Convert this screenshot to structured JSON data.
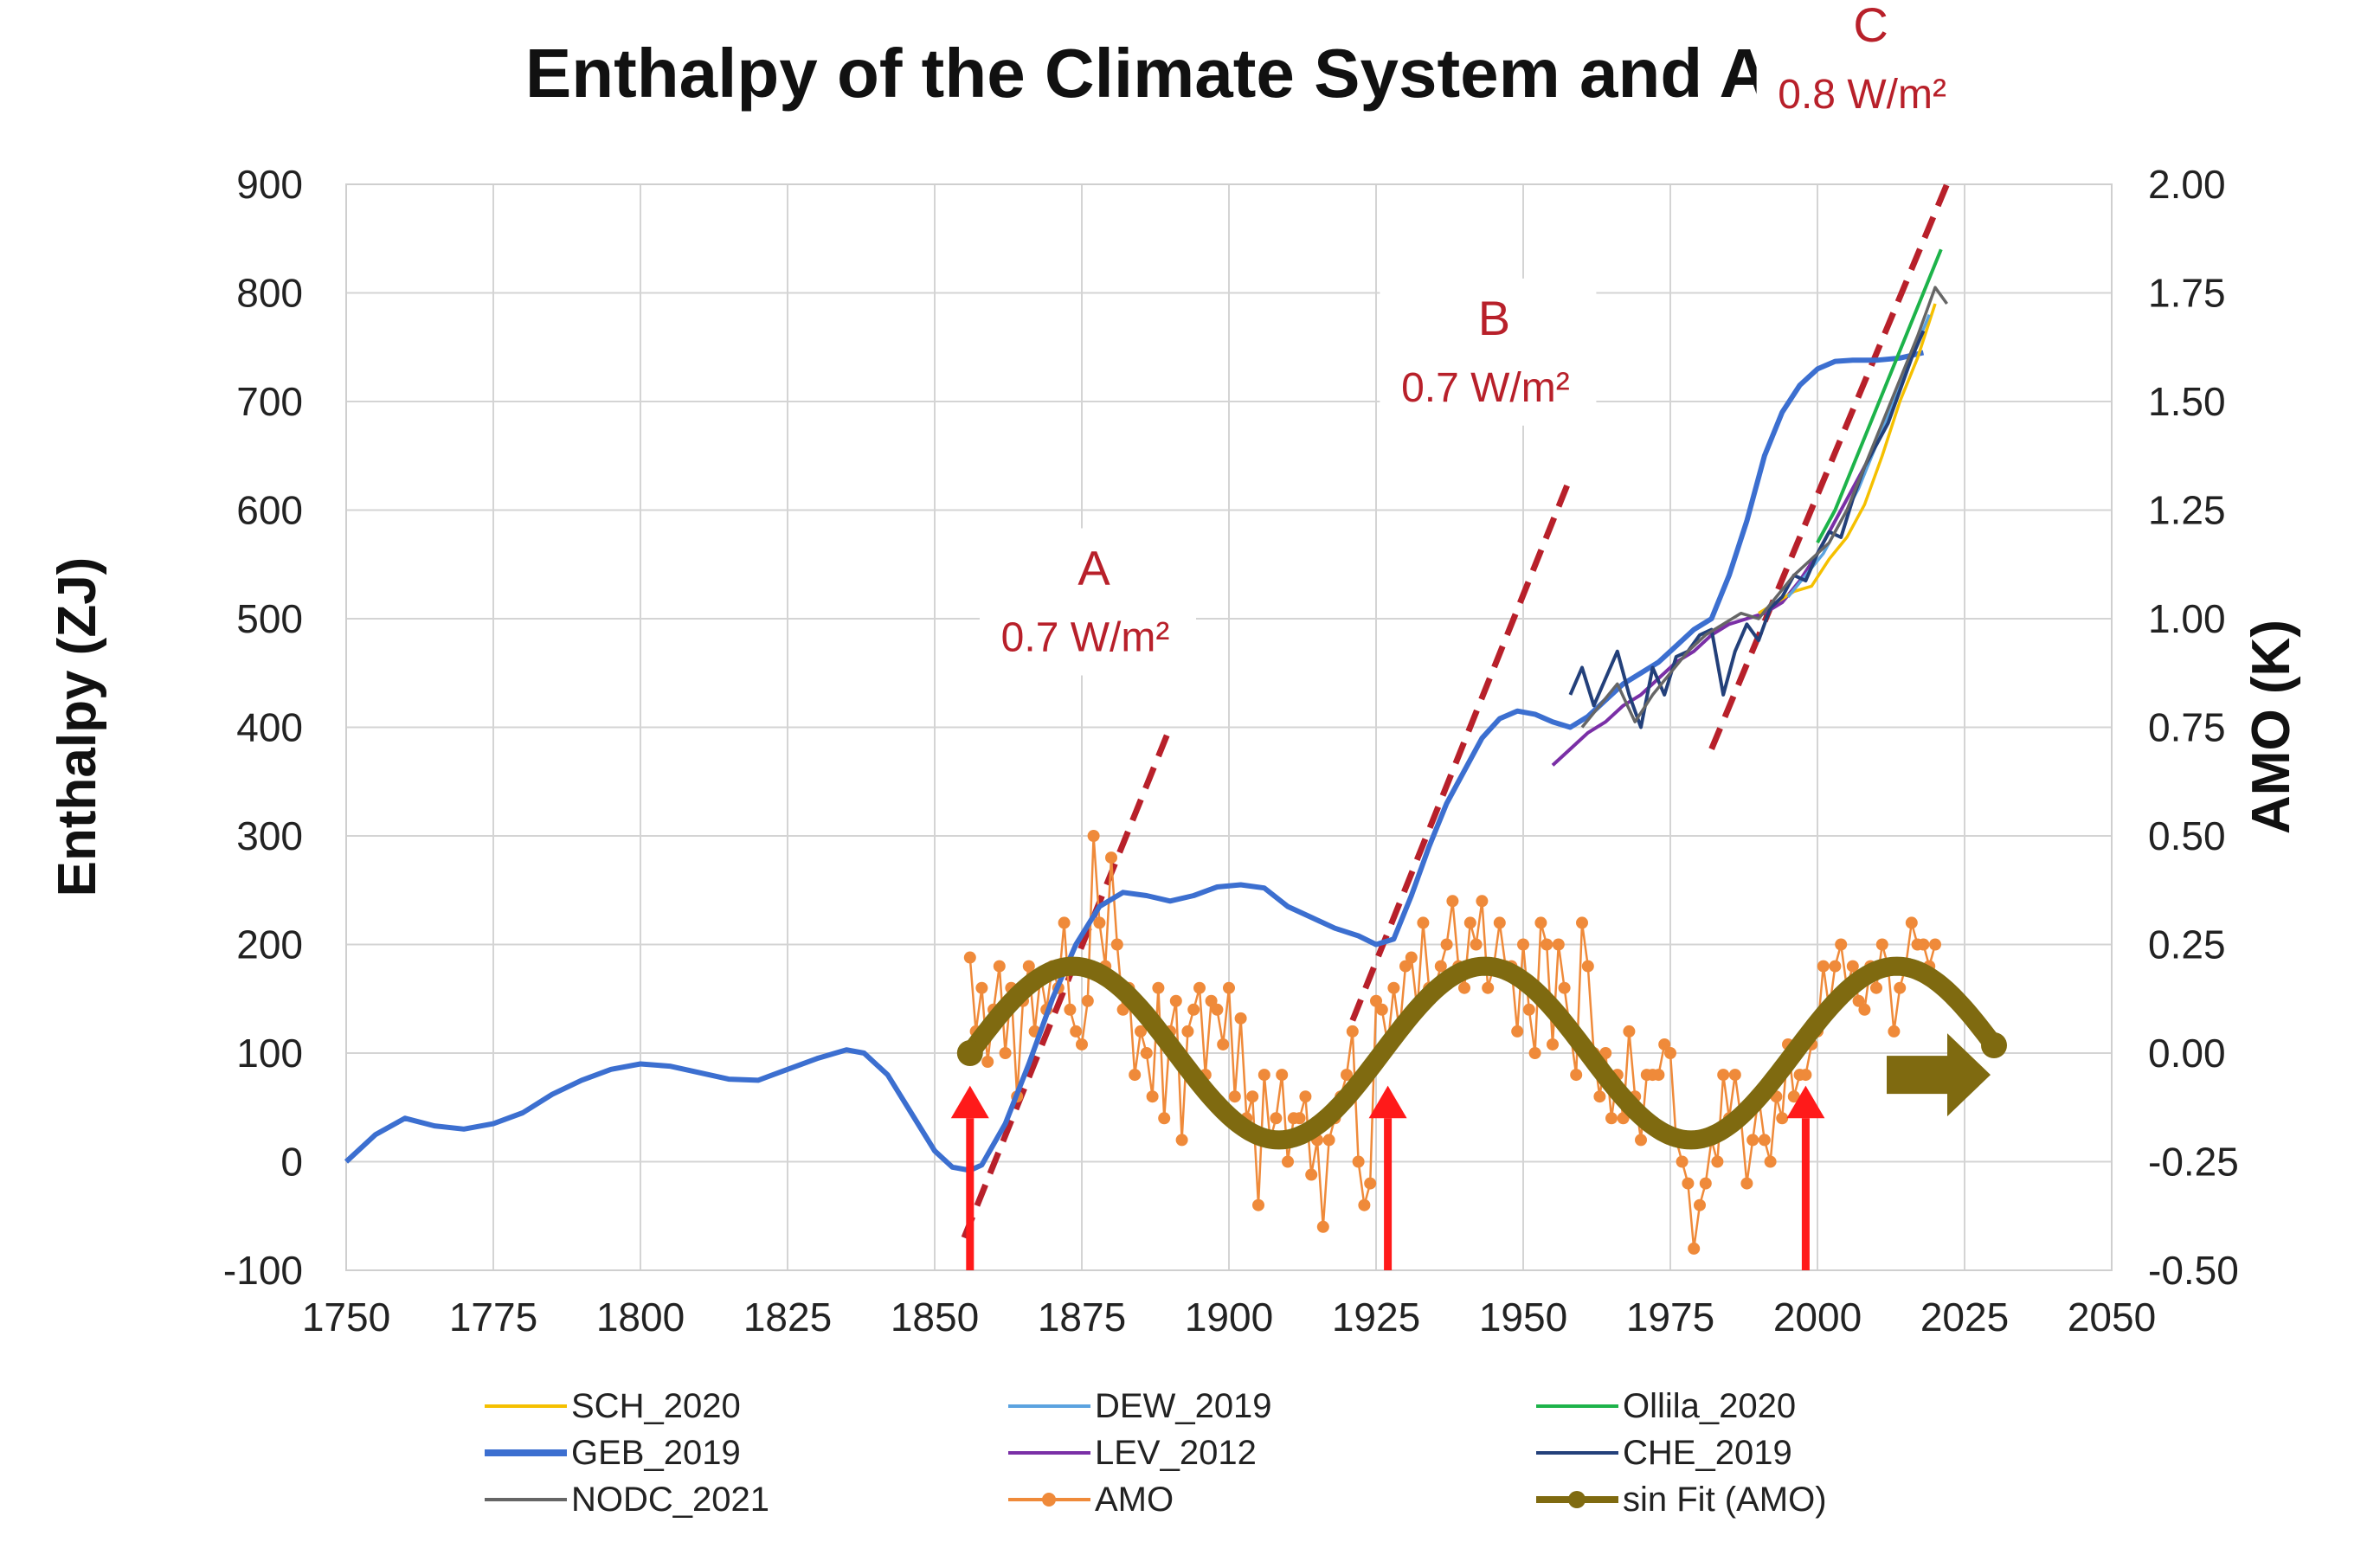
{
  "chart_data": {
    "type": "line",
    "title": "Enthalpy of the Climate System and AMO",
    "ylabel_left": "Enthalpy (ZJ)",
    "ylabel_right": "AMO (K)",
    "xlabel": "",
    "xlim": [
      1750,
      2050
    ],
    "ylim_left": [
      -100,
      900
    ],
    "ylim_right": [
      -0.5,
      2.0
    ],
    "x_ticks": [
      "1750",
      "1775",
      "1800",
      "1825",
      "1850",
      "1875",
      "1900",
      "1925",
      "1950",
      "1975",
      "2000",
      "2025",
      "2050"
    ],
    "y_left_ticks": [
      "-100",
      "0",
      "100",
      "200",
      "300",
      "400",
      "500",
      "600",
      "700",
      "800",
      "900"
    ],
    "y_right_ticks": [
      "-0.50",
      "-0.25",
      "0.00",
      "0.25",
      "0.50",
      "0.75",
      "1.00",
      "1.25",
      "1.50",
      "1.75",
      "2.00"
    ],
    "grid": true,
    "colors": {
      "SCH_2020": "#f5c000",
      "DEW_2019": "#5ba3e0",
      "Ollila_2020": "#1db34a",
      "GEB_2019": "#3c6fd0",
      "LEV_2012": "#7a2fa6",
      "CHE_2019": "#23407a",
      "NODC_2021": "#666666",
      "AMO": "#ef8a3a",
      "sin Fit (AMO)": "#7f6a10",
      "annotation": "#b8202a",
      "arrow": "#ff1a1a"
    },
    "series": [
      {
        "name": "GEB_2019",
        "axis": "left",
        "x": [
          1750,
          1755,
          1760,
          1765,
          1770,
          1775,
          1780,
          1785,
          1790,
          1795,
          1800,
          1805,
          1810,
          1815,
          1820,
          1825,
          1830,
          1835,
          1838,
          1842,
          1846,
          1850,
          1853,
          1856,
          1858,
          1862,
          1866,
          1870,
          1874,
          1878,
          1882,
          1886,
          1890,
          1894,
          1898,
          1902,
          1906,
          1910,
          1914,
          1918,
          1922,
          1925,
          1928,
          1931,
          1934,
          1937,
          1940,
          1943,
          1946,
          1949,
          1952,
          1955,
          1958,
          1961,
          1964,
          1967,
          1970,
          1973,
          1976,
          1979,
          1982,
          1985,
          1988,
          1991,
          1994,
          1997,
          2000,
          2003,
          2006,
          2010,
          2014,
          2018
        ],
        "y": [
          0,
          25,
          40,
          33,
          30,
          35,
          45,
          62,
          75,
          85,
          90,
          88,
          82,
          76,
          75,
          85,
          95,
          103,
          100,
          80,
          45,
          10,
          -5,
          -8,
          -3,
          35,
          90,
          150,
          200,
          235,
          248,
          245,
          240,
          245,
          253,
          255,
          252,
          235,
          225,
          215,
          208,
          200,
          205,
          245,
          290,
          330,
          360,
          390,
          408,
          415,
          412,
          405,
          400,
          410,
          425,
          440,
          450,
          460,
          475,
          490,
          500,
          540,
          590,
          650,
          690,
          715,
          730,
          737,
          738,
          738,
          740,
          745
        ]
      },
      {
        "name": "SCH_2020",
        "axis": "left",
        "x": [
          1990,
          1993,
          1996,
          1999,
          2002,
          2005,
          2008,
          2011,
          2014,
          2017,
          2020
        ],
        "y": [
          505,
          515,
          525,
          530,
          555,
          575,
          605,
          650,
          700,
          740,
          790
        ]
      },
      {
        "name": "DEW_2019",
        "axis": "left",
        "x": [
          1995,
          1998,
          2001,
          2004,
          2007,
          2010,
          2013,
          2016,
          2019
        ],
        "y": [
          520,
          540,
          560,
          590,
          620,
          660,
          700,
          740,
          780
        ]
      },
      {
        "name": "Ollila_2020",
        "axis": "left",
        "x": [
          2000,
          2003,
          2006,
          2009,
          2012,
          2015,
          2018,
          2021
        ],
        "y": [
          570,
          600,
          640,
          680,
          720,
          760,
          800,
          840
        ]
      },
      {
        "name": "LEV_2012",
        "axis": "left",
        "x": [
          1955,
          1958,
          1961,
          1964,
          1967,
          1970,
          1973,
          1976,
          1979,
          1982,
          1985,
          1988,
          1991,
          1994,
          1997,
          2000,
          2003,
          2006,
          2009,
          2012
        ],
        "y": [
          365,
          380,
          395,
          405,
          420,
          430,
          445,
          460,
          470,
          485,
          495,
          500,
          505,
          515,
          535,
          560,
          590,
          620,
          650,
          690
        ]
      },
      {
        "name": "CHE_2019",
        "axis": "left",
        "x": [
          1958,
          1960,
          1962,
          1964,
          1966,
          1968,
          1970,
          1972,
          1974,
          1976,
          1978,
          1980,
          1982,
          1984,
          1986,
          1988,
          1990,
          1992,
          1994,
          1996,
          1998,
          2000,
          2002,
          2004,
          2006,
          2008,
          2010,
          2012,
          2014,
          2016,
          2018
        ],
        "y": [
          430,
          455,
          420,
          445,
          470,
          430,
          400,
          455,
          430,
          465,
          470,
          485,
          490,
          430,
          470,
          495,
          480,
          510,
          520,
          540,
          535,
          560,
          580,
          575,
          610,
          640,
          660,
          680,
          710,
          740,
          765
        ]
      },
      {
        "name": "NODC_2021",
        "axis": "left",
        "x": [
          1960,
          1963,
          1966,
          1969,
          1972,
          1975,
          1978,
          1981,
          1984,
          1987,
          1990,
          1993,
          1996,
          1999,
          2002,
          2005,
          2008,
          2011,
          2014,
          2017,
          2020,
          2022
        ],
        "y": [
          400,
          420,
          440,
          405,
          430,
          450,
          470,
          485,
          495,
          505,
          500,
          520,
          540,
          555,
          570,
          600,
          640,
          680,
          720,
          760,
          805,
          790
        ]
      },
      {
        "name": "AMO",
        "axis": "right",
        "x": [
          1856,
          1857,
          1858,
          1859,
          1860,
          1861,
          1862,
          1863,
          1864,
          1865,
          1866,
          1867,
          1868,
          1869,
          1870,
          1871,
          1872,
          1873,
          1874,
          1875,
          1876,
          1877,
          1878,
          1879,
          1880,
          1881,
          1882,
          1883,
          1884,
          1885,
          1886,
          1887,
          1888,
          1889,
          1890,
          1891,
          1892,
          1893,
          1894,
          1895,
          1896,
          1897,
          1898,
          1899,
          1900,
          1901,
          1902,
          1903,
          1904,
          1905,
          1906,
          1907,
          1908,
          1909,
          1910,
          1911,
          1912,
          1913,
          1914,
          1915,
          1916,
          1917,
          1918,
          1919,
          1920,
          1921,
          1922,
          1923,
          1924,
          1925,
          1926,
          1927,
          1928,
          1929,
          1930,
          1931,
          1932,
          1933,
          1934,
          1935,
          1936,
          1937,
          1938,
          1939,
          1940,
          1941,
          1942,
          1943,
          1944,
          1945,
          1946,
          1947,
          1948,
          1949,
          1950,
          1951,
          1952,
          1953,
          1954,
          1955,
          1956,
          1957,
          1958,
          1959,
          1960,
          1961,
          1962,
          1963,
          1964,
          1965,
          1966,
          1967,
          1968,
          1969,
          1970,
          1971,
          1972,
          1973,
          1974,
          1975,
          1976,
          1977,
          1978,
          1979,
          1980,
          1981,
          1982,
          1983,
          1984,
          1985,
          1986,
          1987,
          1988,
          1989,
          1990,
          1991,
          1992,
          1993,
          1994,
          1995,
          1996,
          1997,
          1998,
          1999,
          2000,
          2001,
          2002,
          2003,
          2004,
          2005,
          2006,
          2007,
          2008,
          2009,
          2010,
          2011,
          2012,
          2013,
          2014,
          2015,
          2016,
          2017,
          2018,
          2019,
          2020
        ],
        "y": [
          0.22,
          0.05,
          0.15,
          -0.02,
          0.1,
          0.2,
          0.0,
          0.15,
          -0.1,
          0.12,
          0.2,
          0.05,
          0.18,
          0.1,
          0.2,
          0.15,
          0.3,
          0.1,
          0.05,
          0.02,
          0.12,
          0.5,
          0.3,
          0.2,
          0.45,
          0.25,
          0.1,
          0.15,
          -0.05,
          0.05,
          0.0,
          -0.1,
          0.15,
          -0.15,
          0.05,
          0.12,
          -0.2,
          0.05,
          0.1,
          0.15,
          -0.05,
          0.12,
          0.1,
          0.02,
          0.15,
          -0.1,
          0.08,
          -0.15,
          -0.1,
          -0.35,
          -0.05,
          -0.2,
          -0.15,
          -0.05,
          -0.25,
          -0.15,
          -0.15,
          -0.1,
          -0.28,
          -0.2,
          -0.4,
          -0.2,
          -0.15,
          -0.1,
          -0.05,
          0.05,
          -0.25,
          -0.35,
          -0.3,
          0.12,
          0.1,
          0.02,
          0.15,
          0.05,
          0.2,
          0.22,
          0.1,
          0.3,
          0.15,
          0.15,
          0.2,
          0.25,
          0.35,
          0.2,
          0.15,
          0.3,
          0.25,
          0.35,
          0.15,
          0.2,
          0.3,
          0.2,
          0.2,
          0.05,
          0.25,
          0.1,
          0.0,
          0.3,
          0.25,
          0.02,
          0.25,
          0.15,
          0.05,
          -0.05,
          0.3,
          0.2,
          0.0,
          -0.1,
          0.0,
          -0.15,
          -0.05,
          -0.15,
          0.05,
          -0.1,
          -0.2,
          -0.05,
          -0.05,
          -0.05,
          0.02,
          0.0,
          -0.2,
          -0.25,
          -0.3,
          -0.45,
          -0.35,
          -0.3,
          -0.2,
          -0.25,
          -0.05,
          -0.15,
          -0.05,
          -0.15,
          -0.3,
          -0.2,
          -0.1,
          -0.2,
          -0.25,
          -0.1,
          -0.15,
          0.02,
          -0.1,
          -0.05,
          -0.05,
          0.02,
          0.05,
          0.2,
          0.1,
          0.2,
          0.25,
          0.15,
          0.2,
          0.12,
          0.1,
          0.2,
          0.15,
          0.25,
          0.2,
          0.05,
          0.15,
          0.2,
          0.3,
          0.25,
          0.25,
          0.2,
          0.25
        ]
      },
      {
        "name": "sin Fit (AMO)",
        "axis": "right",
        "model": "sine",
        "x_start": 1856,
        "x_end": 2030,
        "amplitude": 0.2,
        "period": 70,
        "phase_zero": 1856
      }
    ],
    "annotations": [
      {
        "label": "A",
        "rate": "0.7 W/m²",
        "x": [
          1855,
          1890
        ],
        "y": [
          -70,
          400
        ]
      },
      {
        "label": "B",
        "rate": "0.7 W/m²",
        "x": [
          1921,
          1958
        ],
        "y": [
          130,
          630
        ]
      },
      {
        "label": "C",
        "rate": "0.8 W/m²",
        "x": [
          1982,
          2022
        ],
        "y": [
          380,
          900
        ]
      }
    ],
    "arrows_up": [
      1856,
      1927,
      1998
    ],
    "arrow_right_year": 2025
  }
}
